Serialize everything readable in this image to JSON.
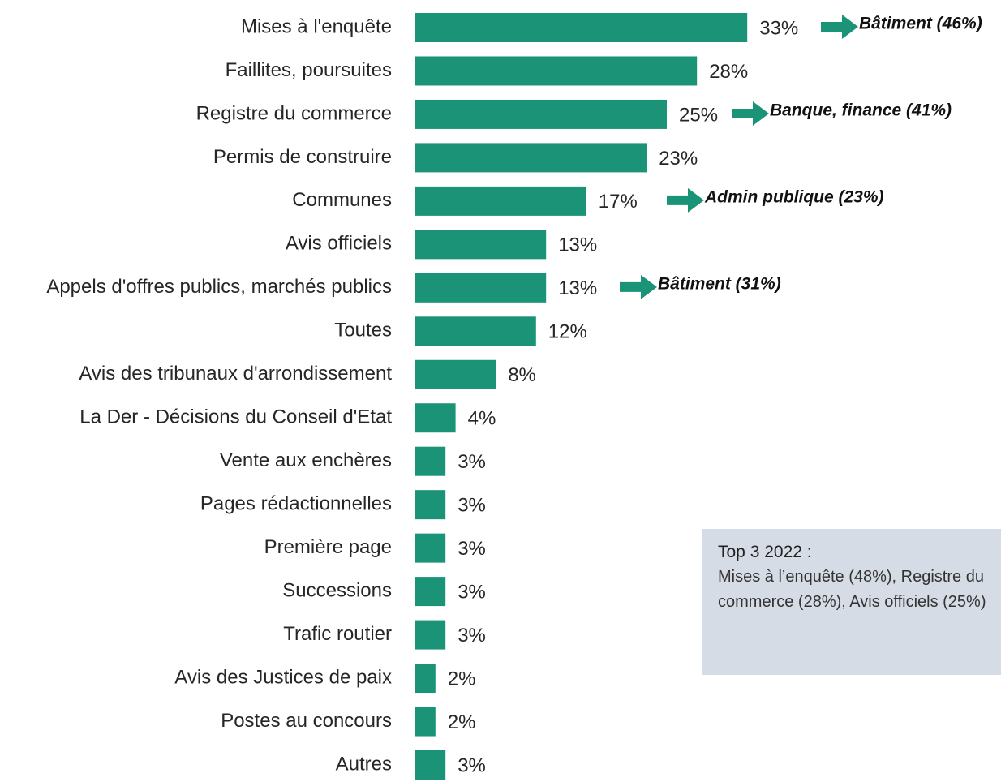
{
  "chart_data": {
    "type": "bar",
    "orientation": "horizontal",
    "categories": [
      "Mises à l'enquête",
      "Faillites, poursuites",
      "Registre du commerce",
      "Permis de construire",
      "Communes",
      "Avis officiels",
      "Appels d'offres publics, marchés publics",
      "Toutes",
      "Avis des tribunaux d'arrondissement",
      "La Der - Décisions du Conseil d'Etat",
      "Vente aux enchères",
      "Pages rédactionnelles",
      "Première page",
      "Successions",
      "Trafic routier",
      "Avis des Justices de paix",
      "Postes au concours",
      "Autres"
    ],
    "values": [
      33,
      28,
      25,
      23,
      17,
      13,
      13,
      12,
      8,
      4,
      3,
      3,
      3,
      3,
      3,
      2,
      2,
      3
    ],
    "value_labels": [
      "33%",
      "28%",
      "25%",
      "23%",
      "17%",
      "13%",
      "13%",
      "12%",
      "8%",
      "4%",
      "3%",
      "3%",
      "3%",
      "3%",
      "3%",
      "2%",
      "2%",
      "3%"
    ],
    "color": "#1b9376",
    "annotations": [
      "Bâtiment (46%)",
      "Banque, finance (41%)",
      "Admin publique (23%)",
      "Bâtiment (31%)"
    ],
    "note": {
      "title": "Top 3 2022 :",
      "text": "Mises à l’enquête (48%), Registre du commerce (28%), Avis officiels (25%)"
    }
  }
}
